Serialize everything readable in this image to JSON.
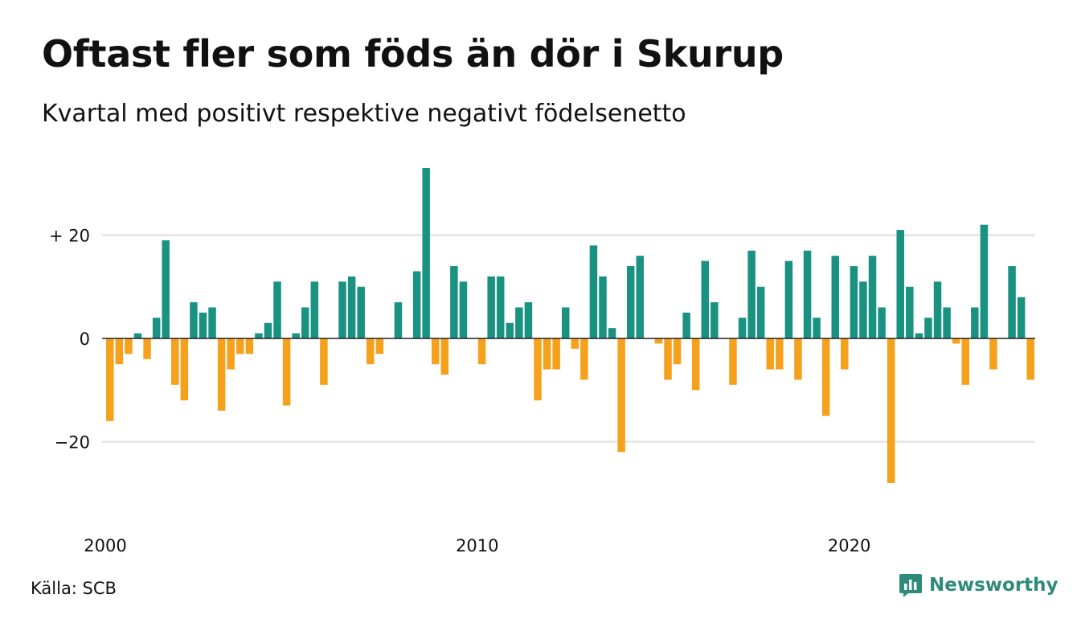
{
  "header": {
    "title": "Oftast fler som föds än dör i Skurup",
    "subtitle": "Kvartal med positivt respektive negativt födelsenetto"
  },
  "footer": {
    "source": "Källa: SCB",
    "brand": "Newsworthy",
    "brand_icon": "newsworthy-logo-icon"
  },
  "colors": {
    "positive": "#1a9282",
    "negative": "#f5a11c",
    "grid": "#dddddd",
    "baseline": "#222222",
    "brand": "#2e8b7a"
  },
  "chart_data": {
    "type": "bar",
    "x_unit": "quarter",
    "start": "2000 Q1",
    "end": "2024 Q4",
    "xticks": [
      2000,
      2010,
      2020
    ],
    "yticks": [
      -20,
      0,
      20
    ],
    "ytick_labels": [
      "−20",
      "0",
      "+ 20"
    ],
    "ylim": [
      -30,
      35
    ],
    "grid": true,
    "values": [
      -16,
      -5,
      -3,
      1,
      -4,
      4,
      19,
      -9,
      -12,
      7,
      5,
      6,
      -14,
      -6,
      -3,
      -3,
      1,
      3,
      11,
      -13,
      1,
      6,
      11,
      -9,
      0,
      11,
      12,
      10,
      -5,
      -3,
      0,
      7,
      0,
      13,
      33,
      -5,
      -7,
      14,
      11,
      0,
      -5,
      12,
      12,
      3,
      6,
      7,
      -12,
      -6,
      -6,
      6,
      -2,
      -8,
      18,
      12,
      2,
      -22,
      14,
      16,
      0,
      -1,
      -8,
      -5,
      5,
      -10,
      15,
      7,
      0,
      -9,
      4,
      17,
      10,
      -6,
      -6,
      15,
      -8,
      17,
      4,
      -15,
      16,
      -6,
      14,
      11,
      16,
      6,
      -28,
      21,
      10,
      1,
      4,
      11,
      6,
      -1,
      -9,
      6,
      22,
      -6,
      0,
      14,
      8,
      -8
    ]
  }
}
